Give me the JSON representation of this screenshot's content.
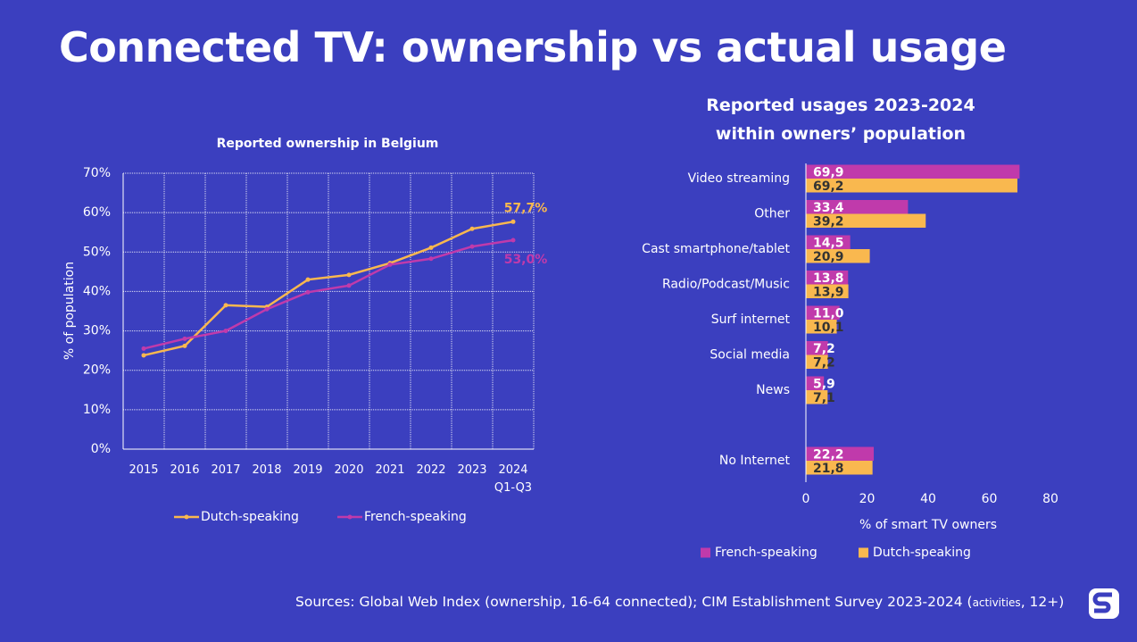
{
  "title": "Connected TV: ownership vs actual usage",
  "chart_data": [
    {
      "type": "line",
      "title": "Reported ownership in Belgium",
      "y_label": "% of population",
      "categories": [
        "2015",
        "2016",
        "2017",
        "2018",
        "2019",
        "2020",
        "2021",
        "2022",
        "2023",
        "2024\nQ1-Q3"
      ],
      "series": [
        {
          "name": "Dutch-speaking",
          "color": "#f9b84f",
          "values": [
            23.8,
            26.2,
            36.5,
            36.1,
            43.0,
            44.2,
            47.2,
            51.1,
            55.9,
            57.7
          ],
          "value_labels": [
            null,
            null,
            null,
            null,
            null,
            null,
            null,
            null,
            null,
            "57,7%"
          ]
        },
        {
          "name": "French-speaking",
          "color": "#c03aab",
          "values": [
            25.5,
            28.0,
            30.0,
            35.5,
            39.8,
            41.5,
            46.8,
            48.3,
            51.4,
            53.0
          ],
          "value_labels": [
            null,
            null,
            null,
            null,
            null,
            null,
            null,
            null,
            null,
            "53,0%"
          ]
        }
      ],
      "ylim": [
        0,
        70
      ],
      "yticks": [
        {
          "value": 0,
          "label": "0%"
        },
        {
          "value": 10,
          "label": "10%"
        },
        {
          "value": 20,
          "label": "20%"
        },
        {
          "value": 30,
          "label": "30%"
        },
        {
          "value": 40,
          "label": "40%"
        },
        {
          "value": 50,
          "label": "50%"
        },
        {
          "value": 60,
          "label": "60%"
        },
        {
          "value": 70,
          "label": "70%"
        }
      ],
      "grid": true,
      "legend": "bottom"
    },
    {
      "type": "hbar",
      "title": "Reported usages 2023-2024\nwithin owners’ population",
      "x_label": "% of smart TV owners",
      "categories": [
        "Video streaming",
        "Other",
        "Cast smartphone/tablet",
        "Radio/Podcast/Music",
        "Surf internet",
        "Social media",
        "News",
        null,
        "No Internet"
      ],
      "series": [
        {
          "name": "French-speaking",
          "color": "#c03aab",
          "values": [
            69.9,
            33.4,
            14.5,
            13.8,
            11.0,
            7.2,
            5.9,
            null,
            22.2
          ],
          "value_labels": [
            "69,9",
            "33,4",
            "14,5",
            "13,8",
            "11,0",
            "7,2",
            "5,9",
            null,
            "22,2"
          ]
        },
        {
          "name": "Dutch-speaking",
          "color": "#f9b84f",
          "values": [
            69.2,
            39.2,
            20.9,
            13.9,
            10.1,
            7.2,
            7.1,
            null,
            21.8
          ],
          "value_labels": [
            "69,2",
            "39,2",
            "20,9",
            "13,9",
            "10,1",
            "7,2",
            "7,1",
            null,
            "21,8"
          ]
        }
      ],
      "xlim": [
        0,
        80
      ],
      "xticks": [
        0,
        20,
        40,
        60,
        80
      ],
      "legend": "bottom"
    }
  ],
  "footer": {
    "sources": "Sources:  Global Web Index (ownership, 16-64 connected); CIM Establishment Survey 2023-2024 (",
    "note": "activities",
    "end": ", 12+)"
  }
}
